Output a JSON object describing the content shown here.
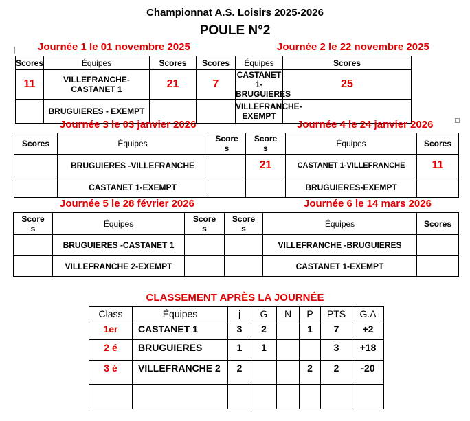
{
  "title": "Championnat A.S. Loisirs 2025-2026",
  "subtitle": "POULE N°2",
  "journees": [
    {
      "label": "Journée 1 le 01 novembre 2025",
      "matches": [
        {
          "teams": "VILLEFRANCHE-CASTANET 1",
          "s1": "11",
          "s2": "21"
        },
        {
          "teams": "BRUGUIERES  - EXEMPT",
          "s1": "",
          "s2": ""
        }
      ]
    },
    {
      "label": "Journée 2 le 22 novembre 2025",
      "matches": [
        {
          "teams": "CASTANET 1-BRUGUIERES",
          "s1": "7",
          "s2": "25"
        },
        {
          "teams": "VILLEFRANCHE- EXEMPT",
          "s1": "",
          "s2": ""
        }
      ]
    },
    {
      "label": "Journée 3 le 03 janvier 2026",
      "matches": [
        {
          "teams": "BRUGUIERES -VILLEFRANCHE",
          "s1": "",
          "s2": ""
        },
        {
          "teams": "CASTANET 1-EXEMPT",
          "s1": "",
          "s2": ""
        }
      ]
    },
    {
      "label": "Journée 4 le 24 janvier 2026",
      "matches": [
        {
          "teams": "CASTANET 1-VILLEFRANCHE",
          "s1": "21",
          "s2": "11"
        },
        {
          "teams": "BRUGUIERES-EXEMPT",
          "s1": "",
          "s2": ""
        }
      ]
    },
    {
      "label": "Journée 5 le 28 février 2026",
      "matches": [
        {
          "teams": "BRUGUIERES -CASTANET 1",
          "s1": "",
          "s2": ""
        },
        {
          "teams": "VILLEFRANCHE 2-EXEMPT",
          "s1": "",
          "s2": ""
        }
      ]
    },
    {
      "label": "Journée 6 le 14 mars 2026",
      "matches": [
        {
          "teams": "VILLEFRANCHE -BRUGUIERES",
          "s1": "",
          "s2": ""
        },
        {
          "teams": "CASTANET 1-EXEMPT",
          "s1": "",
          "s2": ""
        }
      ]
    }
  ],
  "headers": {
    "scores": "Scores",
    "scores_wrapped": "Scores",
    "equipes": "Équipes"
  },
  "classement": {
    "title": "CLASSEMENT APRÈS LA JOURNÉE",
    "columns": [
      "Class",
      "Équipes",
      "j",
      "G",
      "N",
      "P",
      "PTS",
      "G.A"
    ],
    "rows": [
      [
        "1er",
        "CASTANET 1",
        "3",
        "2",
        "",
        "1",
        "7",
        "+2"
      ],
      [
        "2 é",
        "BRUGUIERES",
        "1",
        "1",
        "",
        "",
        "3",
        "+18"
      ],
      [
        "3 é",
        "VILLEFRANCHE 2",
        "2",
        "",
        "",
        "2",
        "2",
        "-20"
      ],
      [
        "",
        "",
        "",
        "",
        "",
        "",
        "",
        ""
      ]
    ]
  },
  "colors": {
    "accent": "#e00000"
  }
}
